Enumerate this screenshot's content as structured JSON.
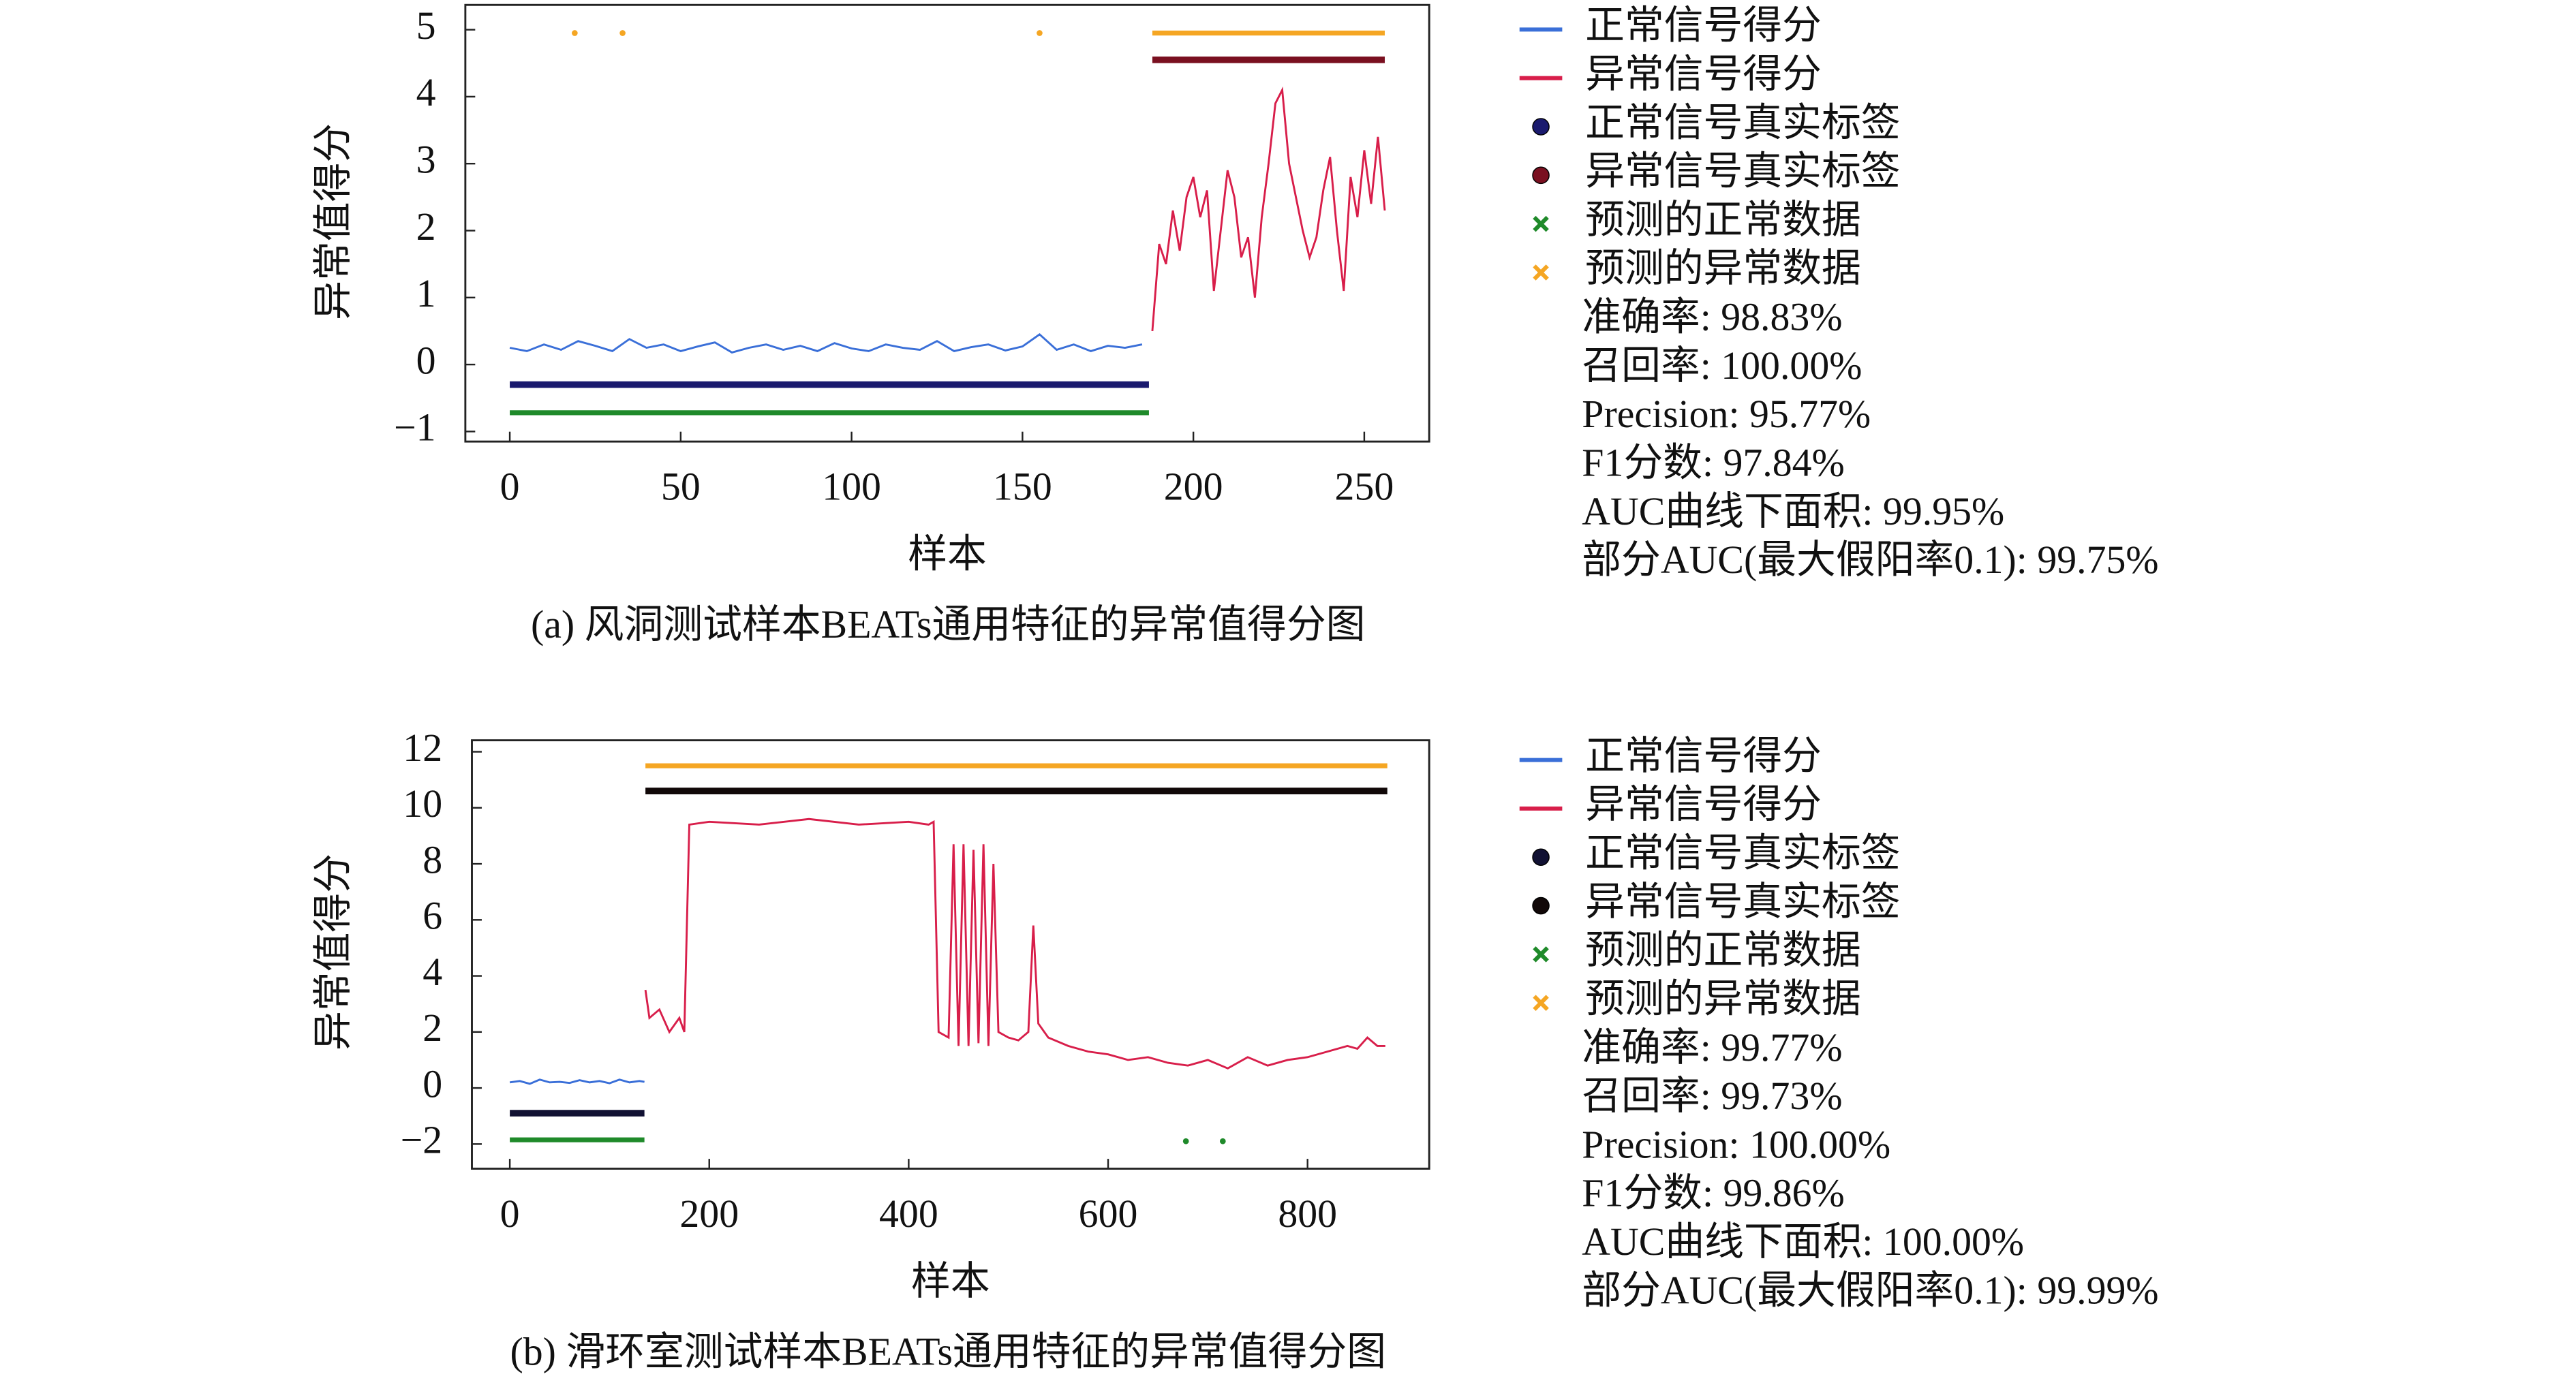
{
  "chart_data": [
    {
      "type": "line",
      "title": "(a) 风洞测试样本BEATs通用特征的异常值得分图",
      "xlabel": "样本",
      "ylabel": "异常值得分",
      "xlim": [
        -13,
        269
      ],
      "ylim": [
        -1.15,
        5.37
      ],
      "xticks": [
        0,
        50,
        100,
        150,
        200,
        250
      ],
      "yticks": [
        5,
        4,
        3,
        2,
        1,
        0,
        {
          "value": -1,
          "label": "−1"
        }
      ],
      "grid": false,
      "series": [
        {
          "name": "正常信号得分",
          "color": "#3a6fd8",
          "marker": "line",
          "x": [
            0,
            5,
            10,
            15,
            20,
            25,
            30,
            35,
            40,
            45,
            50,
            55,
            60,
            65,
            70,
            75,
            80,
            85,
            90,
            95,
            100,
            105,
            110,
            115,
            120,
            125,
            130,
            135,
            140,
            145,
            150,
            155,
            160,
            165,
            170,
            175,
            180,
            185
          ],
          "values": [
            0.25,
            0.2,
            0.3,
            0.22,
            0.35,
            0.28,
            0.2,
            0.38,
            0.25,
            0.3,
            0.2,
            0.27,
            0.33,
            0.18,
            0.25,
            0.3,
            0.22,
            0.28,
            0.2,
            0.32,
            0.24,
            0.2,
            0.3,
            0.25,
            0.22,
            0.35,
            0.2,
            0.26,
            0.3,
            0.21,
            0.27,
            0.45,
            0.22,
            0.3,
            0.2,
            0.28,
            0.25,
            0.3
          ]
        },
        {
          "name": "异常信号得分",
          "color": "#d81e4a",
          "marker": "line",
          "x": [
            188,
            190,
            192,
            194,
            196,
            198,
            200,
            202,
            204,
            206,
            208,
            210,
            212,
            214,
            216,
            218,
            220,
            222,
            224,
            226,
            228,
            230,
            232,
            234,
            236,
            238,
            240,
            242,
            244,
            246,
            248,
            250,
            252,
            254,
            256
          ],
          "values": [
            0.5,
            1.8,
            1.5,
            2.3,
            1.7,
            2.5,
            2.8,
            2.2,
            2.6,
            1.1,
            2.0,
            2.9,
            2.5,
            1.6,
            1.9,
            1.0,
            2.2,
            3.0,
            3.9,
            4.1,
            3.0,
            2.5,
            2.0,
            1.6,
            1.9,
            2.6,
            3.1,
            2.0,
            1.1,
            2.8,
            2.2,
            3.2,
            2.4,
            3.4,
            2.3
          ]
        },
        {
          "name": "正常信号真实标签",
          "color": "#1a1a6e",
          "marker": "circle",
          "x": [
            0,
            187
          ],
          "values": [
            -0.3,
            -0.3
          ]
        },
        {
          "name": "异常信号真实标签",
          "color": "#7a1020",
          "marker": "circle",
          "x": [
            188,
            256
          ],
          "values": [
            4.55,
            4.55
          ]
        },
        {
          "name": "预测的正常数据",
          "color": "#1f8a2a",
          "marker": "x",
          "x": [
            0,
            187
          ],
          "values": [
            -0.72,
            -0.72
          ]
        },
        {
          "name": "预测的异常数据",
          "color": "#f5a623",
          "marker": "x",
          "x": [
            19,
            null,
            33,
            null,
            155,
            null,
            188,
            256
          ],
          "values": [
            4.95,
            null,
            4.95,
            null,
            4.95,
            null,
            4.95,
            4.95
          ]
        }
      ],
      "annotations": [
        "准确率: 98.83%",
        "召回率: 100.00%",
        "Precision: 95.77%",
        "F1分数: 97.84%",
        "AUC曲线下面积: 99.95%",
        "部分AUC(最大假阳率0.1): 99.75%"
      ]
    },
    {
      "type": "line",
      "title": "(b) 滑环室测试样本BEATs通用特征的异常值得分图",
      "xlabel": "样本",
      "ylabel": "异常值得分",
      "xlim": [
        -38,
        922
      ],
      "ylim": [
        -2.88,
        12.41
      ],
      "xticks": [
        0,
        200,
        400,
        600,
        800
      ],
      "yticks": [
        12,
        10,
        8,
        6,
        4,
        2,
        0,
        {
          "value": -2,
          "label": "−2"
        }
      ],
      "grid": false,
      "series": [
        {
          "name": "正常信号得分",
          "color": "#3a6fd8",
          "marker": "line",
          "x": [
            0,
            10,
            20,
            30,
            40,
            50,
            60,
            70,
            80,
            90,
            100,
            110,
            120,
            130,
            135
          ],
          "values": [
            0.2,
            0.25,
            0.15,
            0.3,
            0.2,
            0.22,
            0.18,
            0.28,
            0.2,
            0.25,
            0.17,
            0.3,
            0.2,
            0.25,
            0.22
          ]
        },
        {
          "name": "异常信号得分",
          "color": "#d81e4a",
          "marker": "line",
          "x": [
            136,
            140,
            150,
            160,
            170,
            175,
            180,
            200,
            250,
            300,
            350,
            400,
            420,
            425,
            430,
            440,
            445,
            450,
            455,
            460,
            465,
            470,
            475,
            480,
            485,
            490,
            500,
            510,
            520,
            525,
            530,
            540,
            560,
            580,
            600,
            620,
            640,
            660,
            680,
            700,
            720,
            740,
            760,
            780,
            800,
            820,
            840,
            850,
            860,
            870,
            878
          ],
          "values": [
            3.5,
            2.5,
            2.8,
            2.0,
            2.5,
            2.0,
            9.4,
            9.5,
            9.4,
            9.6,
            9.4,
            9.5,
            9.4,
            9.5,
            2.0,
            1.8,
            8.7,
            1.5,
            8.7,
            1.5,
            8.5,
            1.6,
            8.7,
            1.5,
            8.0,
            2.0,
            1.8,
            1.7,
            2.0,
            5.8,
            2.3,
            1.8,
            1.5,
            1.3,
            1.2,
            1.0,
            1.1,
            0.9,
            0.8,
            1.0,
            0.7,
            1.1,
            0.8,
            1.0,
            1.1,
            1.3,
            1.5,
            1.4,
            1.8,
            1.5,
            1.5
          ]
        },
        {
          "name": "正常信号真实标签",
          "color": "#111133",
          "marker": "circle",
          "x": [
            0,
            135
          ],
          "values": [
            -0.9,
            -0.9
          ]
        },
        {
          "name": "异常信号真实标签",
          "color": "#110808",
          "marker": "circle",
          "x": [
            136,
            880
          ],
          "values": [
            10.6,
            10.6
          ]
        },
        {
          "name": "预测的正常数据",
          "color": "#1f8a2a",
          "marker": "x",
          "x": [
            0,
            135,
            null,
            678,
            null,
            715
          ],
          "values": [
            -1.85,
            -1.85,
            null,
            -1.9,
            null,
            -1.9
          ]
        },
        {
          "name": "预测的异常数据",
          "color": "#f5a623",
          "marker": "x",
          "x": [
            136,
            880
          ],
          "values": [
            11.5,
            11.5
          ]
        }
      ],
      "annotations": [
        "准确率: 99.77%",
        "召回率: 99.73%",
        "Precision: 100.00%",
        "F1分数: 99.86%",
        "AUC曲线下面积: 100.00%",
        "部分AUC(最大假阳率0.1): 99.99%"
      ]
    }
  ]
}
